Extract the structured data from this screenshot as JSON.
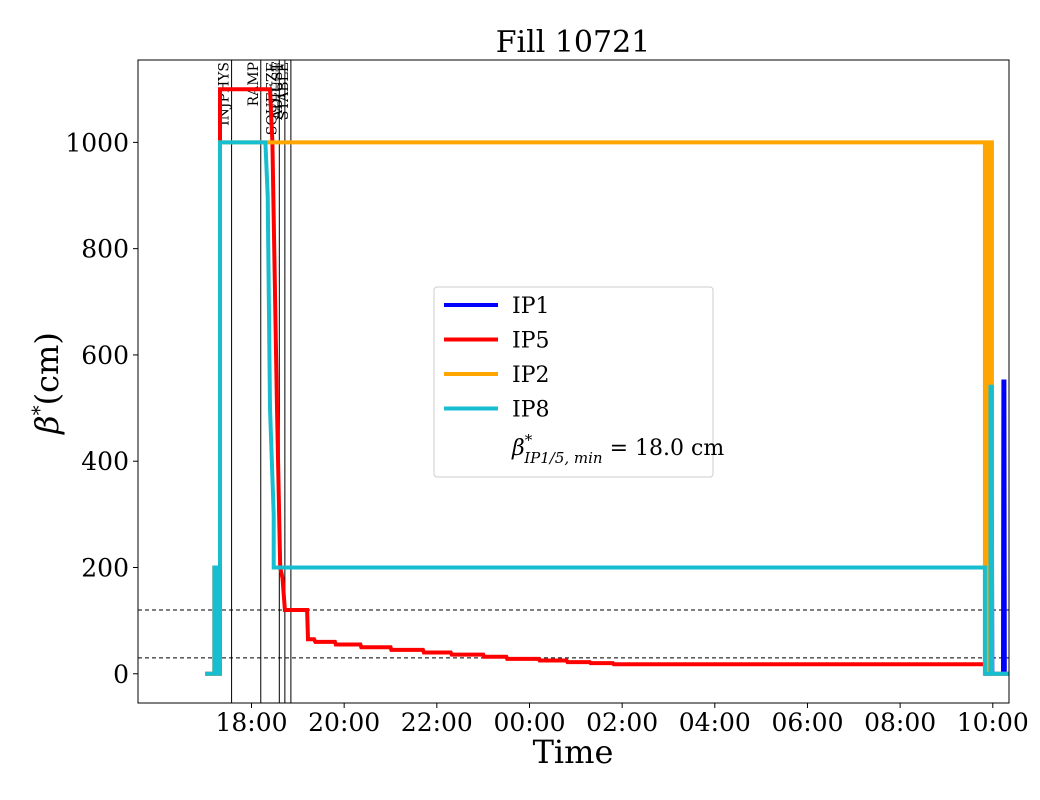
{
  "chart_data": {
    "type": "line",
    "title": "Fill 10721",
    "xlabel": "Time",
    "ylabel_main": "β",
    "ylabel_sup": "*",
    "ylabel_unit": "(cm)",
    "x_unit": "hours since 00:00 of fill start day",
    "xlim": [
      15.55,
      34.35
    ],
    "ylim": [
      -55,
      1155
    ],
    "x_ticks": [
      {
        "value": 18,
        "label": "18:00"
      },
      {
        "value": 20,
        "label": "20:00"
      },
      {
        "value": 22,
        "label": "22:00"
      },
      {
        "value": 24,
        "label": "00:00"
      },
      {
        "value": 26,
        "label": "02:00"
      },
      {
        "value": 28,
        "label": "04:00"
      },
      {
        "value": 30,
        "label": "06:00"
      },
      {
        "value": 32,
        "label": "08:00"
      },
      {
        "value": 34,
        "label": "10:00"
      }
    ],
    "y_ticks": [
      {
        "value": 0,
        "label": "0"
      },
      {
        "value": 200,
        "label": "200"
      },
      {
        "value": 400,
        "label": "400"
      },
      {
        "value": 600,
        "label": "600"
      },
      {
        "value": 800,
        "label": "800"
      },
      {
        "value": 1000,
        "label": "1000"
      }
    ],
    "phases": [
      {
        "x": 17.57,
        "label": "INJPHYS"
      },
      {
        "x": 18.2,
        "label": "RAMP"
      },
      {
        "x": 18.6,
        "label": "SQUEEZE"
      },
      {
        "x": 18.72,
        "label": "ADJUST"
      },
      {
        "x": 18.85,
        "label": "STABLE"
      }
    ],
    "hlines": [
      30,
      120
    ],
    "legend": {
      "position": "center",
      "entries": [
        {
          "label": "IP1",
          "color": "#0000ff"
        },
        {
          "label": "IP5",
          "color": "#ff0000"
        },
        {
          "label": "IP2",
          "color": "#ffa500"
        },
        {
          "label": "IP8",
          "color": "#17becf"
        }
      ],
      "note_main": "β",
      "note_sup": "*",
      "note_sub": "IP1/5, min",
      "note_value": " = 18.0 cm"
    },
    "series": [
      {
        "name": "IP1",
        "color": "#0000ff",
        "x": [
          33.83,
          33.95,
          33.96,
          33.98,
          33.99,
          34.22,
          34.23,
          34.25,
          34.26,
          34.45
        ],
        "y": [
          0,
          0,
          330,
          330,
          0,
          0,
          550,
          550,
          0,
          0
        ]
      },
      {
        "name": "IP5",
        "color": "#ff0000",
        "x": [
          17.0,
          17.2,
          17.2,
          17.27,
          17.27,
          17.32,
          17.32,
          18.4,
          18.45,
          18.55,
          18.62,
          18.67,
          18.72,
          19.2,
          19.22,
          19.35,
          19.38,
          19.8,
          19.82,
          20.35,
          20.37,
          21.0,
          21.02,
          21.7,
          21.72,
          22.3,
          22.32,
          23.0,
          23.02,
          23.5,
          23.52,
          24.2,
          24.22,
          24.8,
          24.82,
          25.3,
          25.32,
          25.8,
          25.82,
          33.85,
          33.85,
          33.9
        ],
        "y": [
          0,
          0,
          200,
          200,
          0,
          0,
          1100,
          1100,
          1000,
          500,
          200,
          180,
          120,
          120,
          65,
          65,
          60,
          60,
          55,
          55,
          50,
          50,
          45,
          45,
          40,
          40,
          36,
          36,
          32,
          32,
          28,
          28,
          25,
          25,
          22,
          22,
          20,
          20,
          18,
          18,
          0,
          0
        ]
      },
      {
        "name": "IP2",
        "color": "#ffa500",
        "x": [
          17.0,
          17.2,
          17.2,
          17.27,
          17.27,
          17.32,
          17.32,
          33.83,
          33.83,
          33.88,
          33.88,
          33.91,
          33.91,
          33.98,
          33.98,
          34.45
        ],
        "y": [
          0,
          0,
          200,
          200,
          0,
          0,
          1000,
          1000,
          200,
          200,
          0,
          0,
          1000,
          1000,
          0,
          0
        ]
      },
      {
        "name": "IP8",
        "color": "#17becf",
        "x": [
          17.0,
          17.2,
          17.2,
          17.27,
          17.27,
          17.32,
          17.32,
          18.3,
          18.35,
          18.4,
          18.48,
          18.48,
          33.83,
          33.83,
          33.95,
          33.95,
          33.98,
          33.98,
          34.45
        ],
        "y": [
          0,
          0,
          200,
          200,
          0,
          0,
          1000,
          1000,
          900,
          500,
          300,
          200,
          200,
          0,
          0,
          540,
          540,
          0,
          0
        ]
      }
    ]
  }
}
